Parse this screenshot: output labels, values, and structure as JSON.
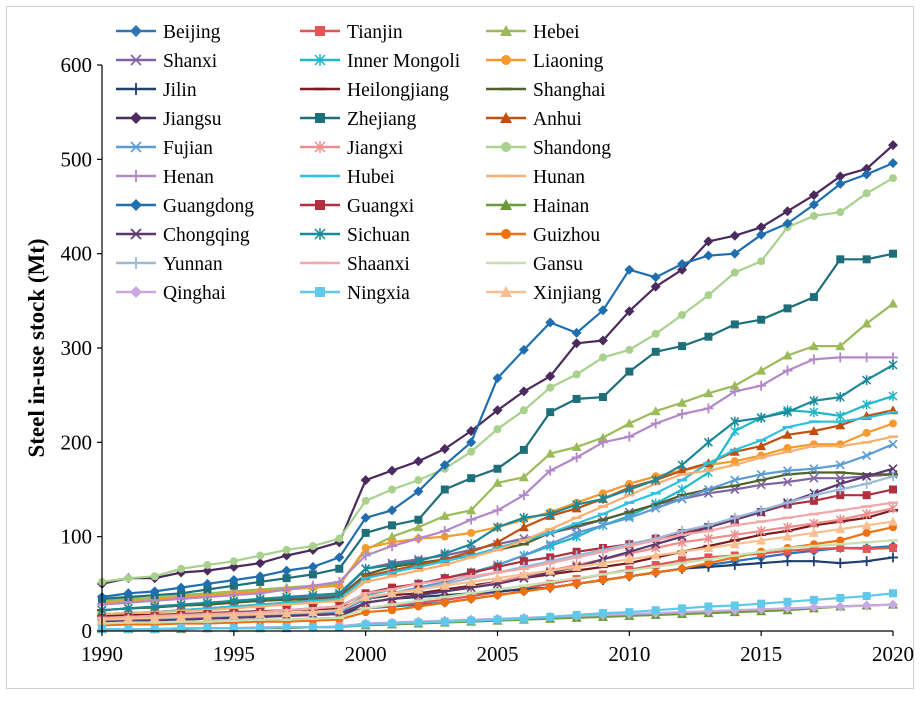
{
  "chart_data": {
    "type": "line",
    "title": "",
    "xlabel": "",
    "ylabel": "Steel in-use stock (Mt)",
    "xlim": [
      1990,
      2020
    ],
    "ylim": [
      0,
      600
    ],
    "x_ticks": [
      "1990",
      "1995",
      "2000",
      "2005",
      "2010",
      "2015",
      "2020"
    ],
    "y_ticks": [
      "0",
      "100",
      "200",
      "300",
      "400",
      "500",
      "600"
    ],
    "x": [
      1990,
      1991,
      1992,
      1993,
      1994,
      1995,
      1996,
      1997,
      1998,
      1999,
      2000,
      2001,
      2002,
      2003,
      2004,
      2005,
      2006,
      2007,
      2008,
      2009,
      2010,
      2011,
      2012,
      2013,
      2014,
      2015,
      2016,
      2017,
      2018,
      2019,
      2020
    ],
    "legend_position": "top",
    "series": [
      {
        "name": "Beijing",
        "color": "#2e75b6",
        "marker": "diamond",
        "values": [
          12,
          13,
          13,
          14,
          15,
          16,
          16,
          17,
          17,
          18,
          24,
          26,
          28,
          30,
          34,
          38,
          42,
          46,
          50,
          54,
          58,
          62,
          66,
          70,
          74,
          78,
          82,
          85,
          88,
          88,
          90
        ]
      },
      {
        "name": "Tianjin",
        "color": "#e05555",
        "marker": "square",
        "values": [
          10,
          11,
          11,
          12,
          13,
          14,
          15,
          16,
          17,
          18,
          24,
          27,
          30,
          33,
          37,
          41,
          45,
          50,
          55,
          60,
          65,
          70,
          75,
          78,
          80,
          82,
          85,
          87,
          88,
          87,
          88
        ]
      },
      {
        "name": "Hebei",
        "color": "#9bbb59",
        "marker": "triangle",
        "values": [
          32,
          34,
          35,
          38,
          40,
          42,
          44,
          46,
          48,
          50,
          86,
          100,
          110,
          122,
          128,
          157,
          163,
          188,
          195,
          205,
          220,
          233,
          242,
          252,
          260,
          276,
          292,
          302,
          302,
          326,
          347
        ]
      },
      {
        "name": "Shanxi",
        "color": "#8064a2",
        "marker": "x",
        "values": [
          22,
          24,
          25,
          27,
          28,
          30,
          32,
          34,
          36,
          38,
          66,
          72,
          76,
          80,
          86,
          92,
          98,
          104,
          110,
          118,
          126,
          134,
          140,
          146,
          150,
          155,
          158,
          162,
          162,
          164,
          166
        ]
      },
      {
        "name": "Inner Mongoli",
        "color": "#20b8c8",
        "marker": "star",
        "values": [
          12,
          13,
          14,
          15,
          16,
          17,
          18,
          19,
          20,
          21,
          38,
          44,
          50,
          56,
          62,
          70,
          80,
          90,
          100,
          112,
          122,
          135,
          150,
          168,
          212,
          226,
          234,
          232,
          228,
          240,
          249
        ]
      },
      {
        "name": "Liaoning",
        "color": "#f59a2e",
        "marker": "circle",
        "values": [
          30,
          32,
          33,
          36,
          38,
          40,
          42,
          44,
          46,
          48,
          88,
          94,
          98,
          100,
          104,
          110,
          118,
          126,
          136,
          146,
          156,
          164,
          170,
          176,
          180,
          186,
          194,
          198,
          198,
          210,
          220
        ]
      },
      {
        "name": "Jilin",
        "color": "#1f3f6e",
        "marker": "plus",
        "values": [
          8,
          9,
          9,
          10,
          10,
          11,
          12,
          12,
          13,
          14,
          30,
          34,
          36,
          38,
          40,
          42,
          44,
          46,
          50,
          54,
          58,
          62,
          66,
          68,
          70,
          72,
          74,
          74,
          72,
          74,
          78
        ]
      },
      {
        "name": "Heilongjiang",
        "color": "#7b1c1c",
        "marker": "dash",
        "values": [
          16,
          17,
          17,
          18,
          19,
          20,
          21,
          22,
          23,
          24,
          34,
          38,
          40,
          44,
          48,
          52,
          56,
          60,
          64,
          68,
          72,
          78,
          84,
          90,
          96,
          102,
          106,
          112,
          116,
          120,
          128
        ]
      },
      {
        "name": "Shanghai",
        "color": "#4f6228",
        "marker": "dash",
        "values": [
          22,
          24,
          25,
          27,
          28,
          30,
          32,
          33,
          34,
          36,
          60,
          68,
          72,
          76,
          80,
          86,
          92,
          104,
          112,
          118,
          126,
          134,
          144,
          150,
          154,
          160,
          166,
          168,
          168,
          166,
          166
        ]
      },
      {
        "name": "Jiangsu",
        "color": "#4b2a5e",
        "marker": "diamond",
        "values": [
          50,
          56,
          56,
          62,
          64,
          68,
          72,
          80,
          86,
          94,
          160,
          170,
          180,
          193,
          212,
          234,
          254,
          270,
          305,
          308,
          339,
          365,
          383,
          413,
          419,
          428,
          445,
          462,
          482,
          490,
          515
        ]
      },
      {
        "name": "Zhejiang",
        "color": "#1f6f7a",
        "marker": "square",
        "values": [
          34,
          36,
          38,
          40,
          44,
          48,
          52,
          56,
          60,
          66,
          104,
          112,
          118,
          150,
          162,
          172,
          192,
          232,
          246,
          248,
          275,
          296,
          302,
          312,
          325,
          330,
          342,
          354,
          394,
          394,
          400
        ]
      },
      {
        "name": "Anhui",
        "color": "#c05010",
        "marker": "triangle",
        "values": [
          18,
          19,
          20,
          22,
          24,
          26,
          28,
          30,
          32,
          34,
          58,
          64,
          70,
          76,
          84,
          94,
          110,
          122,
          130,
          140,
          152,
          160,
          170,
          178,
          190,
          196,
          208,
          212,
          218,
          228,
          234
        ]
      },
      {
        "name": "Fujian",
        "color": "#5b9bd5",
        "marker": "x",
        "values": [
          10,
          11,
          12,
          13,
          14,
          15,
          16,
          17,
          18,
          20,
          34,
          40,
          46,
          52,
          60,
          70,
          80,
          92,
          104,
          112,
          120,
          130,
          140,
          150,
          160,
          166,
          170,
          172,
          176,
          186,
          198
        ]
      },
      {
        "name": "Jiangxi",
        "color": "#f08c8c",
        "marker": "star",
        "values": [
          10,
          11,
          11,
          12,
          13,
          14,
          15,
          16,
          17,
          18,
          30,
          34,
          38,
          42,
          46,
          52,
          58,
          64,
          70,
          76,
          82,
          88,
          94,
          98,
          102,
          106,
          110,
          114,
          118,
          124,
          130
        ]
      },
      {
        "name": "Shandong",
        "color": "#a8d18d",
        "marker": "circle",
        "values": [
          52,
          56,
          58,
          66,
          70,
          74,
          80,
          86,
          90,
          98,
          138,
          150,
          160,
          172,
          190,
          214,
          234,
          258,
          272,
          290,
          298,
          315,
          335,
          356,
          380,
          392,
          428,
          440,
          444,
          464,
          480
        ]
      },
      {
        "name": "Henan",
        "color": "#b388c8",
        "marker": "plus",
        "values": [
          28,
          30,
          32,
          34,
          36,
          38,
          40,
          44,
          48,
          52,
          80,
          90,
          98,
          106,
          118,
          128,
          144,
          170,
          184,
          200,
          206,
          220,
          230,
          236,
          254,
          260,
          276,
          288,
          290,
          290,
          290
        ]
      },
      {
        "name": "Hubei",
        "color": "#30c0e0",
        "marker": "dash",
        "values": [
          18,
          19,
          20,
          22,
          24,
          26,
          28,
          30,
          32,
          34,
          56,
          62,
          68,
          74,
          80,
          88,
          96,
          104,
          114,
          124,
          136,
          146,
          160,
          178,
          192,
          202,
          216,
          222,
          222,
          226,
          232
        ]
      },
      {
        "name": "Hunan",
        "color": "#f8b070",
        "marker": "dash",
        "values": [
          18,
          19,
          20,
          21,
          22,
          24,
          26,
          28,
          30,
          32,
          52,
          58,
          64,
          70,
          78,
          86,
          96,
          108,
          120,
          132,
          144,
          156,
          166,
          170,
          176,
          184,
          190,
          196,
          196,
          200,
          206
        ]
      },
      {
        "name": "Guangdong",
        "color": "#1f6fb0",
        "marker": "diamond",
        "values": [
          36,
          40,
          42,
          46,
          50,
          54,
          58,
          64,
          68,
          78,
          120,
          128,
          148,
          176,
          200,
          268,
          298,
          327,
          316,
          340,
          383,
          375,
          389,
          398,
          400,
          420,
          432,
          452,
          474,
          484,
          496
        ]
      },
      {
        "name": "Guangxi",
        "color": "#b03040",
        "marker": "square",
        "values": [
          14,
          15,
          16,
          17,
          18,
          19,
          20,
          22,
          24,
          26,
          40,
          46,
          50,
          56,
          62,
          68,
          74,
          78,
          84,
          88,
          92,
          98,
          104,
          110,
          118,
          126,
          134,
          138,
          144,
          144,
          150
        ]
      },
      {
        "name": "Hainan",
        "color": "#6a9a3a",
        "marker": "triangle",
        "values": [
          2,
          2,
          2,
          2,
          3,
          3,
          3,
          3,
          4,
          4,
          6,
          7,
          8,
          9,
          10,
          11,
          12,
          13,
          14,
          15,
          16,
          17,
          18,
          19,
          20,
          21,
          22,
          24,
          26,
          27,
          28
        ]
      },
      {
        "name": "Chongqing",
        "color": "#5a3a6e",
        "marker": "x",
        "values": [
          10,
          11,
          11,
          12,
          13,
          14,
          15,
          16,
          17,
          18,
          30,
          34,
          38,
          42,
          46,
          50,
          56,
          62,
          68,
          76,
          84,
          92,
          100,
          110,
          118,
          126,
          136,
          146,
          156,
          164,
          172
        ]
      },
      {
        "name": "Sichuan",
        "color": "#1a8a9a",
        "marker": "star",
        "values": [
          22,
          24,
          26,
          28,
          30,
          32,
          34,
          36,
          38,
          40,
          66,
          70,
          74,
          82,
          92,
          110,
          120,
          124,
          134,
          140,
          150,
          160,
          176,
          200,
          222,
          226,
          232,
          244,
          248,
          266,
          282
        ]
      },
      {
        "name": "Guizhou",
        "color": "#f07010",
        "marker": "circle",
        "values": [
          6,
          7,
          7,
          8,
          8,
          9,
          10,
          10,
          11,
          12,
          20,
          22,
          26,
          30,
          34,
          38,
          42,
          46,
          50,
          54,
          58,
          62,
          66,
          72,
          78,
          84,
          88,
          92,
          96,
          104,
          110
        ]
      },
      {
        "name": "Yunnan",
        "color": "#9ab8d8",
        "marker": "plus",
        "values": [
          12,
          13,
          14,
          15,
          16,
          17,
          18,
          19,
          20,
          22,
          36,
          40,
          44,
          50,
          56,
          62,
          68,
          74,
          80,
          86,
          92,
          98,
          106,
          112,
          120,
          128,
          136,
          144,
          150,
          156,
          164
        ]
      },
      {
        "name": "Shaanxi",
        "color": "#f0a8a8",
        "marker": "dash",
        "values": [
          14,
          15,
          16,
          17,
          18,
          19,
          20,
          22,
          24,
          26,
          40,
          44,
          50,
          54,
          58,
          62,
          66,
          72,
          78,
          84,
          90,
          96,
          102,
          106,
          112,
          116,
          120,
          124,
          128,
          132,
          136
        ]
      },
      {
        "name": "Gansu",
        "color": "#c8e0b0",
        "marker": "dash",
        "values": [
          8,
          9,
          9,
          10,
          10,
          11,
          12,
          12,
          13,
          14,
          24,
          28,
          32,
          36,
          40,
          44,
          48,
          52,
          56,
          60,
          64,
          68,
          72,
          76,
          80,
          84,
          88,
          90,
          92,
          94,
          96
        ]
      },
      {
        "name": "Qinghai",
        "color": "#c8a8e0",
        "marker": "diamond",
        "values": [
          2,
          2,
          2,
          3,
          3,
          3,
          4,
          4,
          4,
          5,
          8,
          9,
          10,
          11,
          12,
          13,
          14,
          15,
          16,
          17,
          18,
          19,
          20,
          21,
          22,
          23,
          24,
          25,
          26,
          27,
          28
        ]
      },
      {
        "name": "Ningxia",
        "color": "#60c8e8",
        "marker": "square",
        "values": [
          2,
          2,
          2,
          3,
          3,
          3,
          3,
          4,
          4,
          4,
          7,
          8,
          9,
          10,
          11,
          12,
          13,
          15,
          17,
          19,
          20,
          22,
          24,
          26,
          27,
          29,
          31,
          33,
          35,
          37,
          40
        ]
      },
      {
        "name": "Xinjiang",
        "color": "#f8c090",
        "marker": "triangle",
        "values": [
          12,
          13,
          14,
          15,
          16,
          17,
          18,
          19,
          20,
          22,
          36,
          40,
          44,
          48,
          52,
          56,
          60,
          64,
          68,
          72,
          76,
          80,
          84,
          88,
          92,
          96,
          100,
          104,
          108,
          112,
          116
        ]
      }
    ]
  }
}
